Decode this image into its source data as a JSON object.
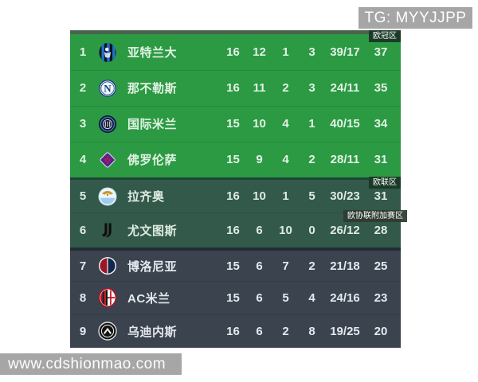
{
  "watermarks": {
    "top": "TG: MYYJJPP",
    "bottom": "www.cdshionmao.com"
  },
  "badges": {
    "champions_zone": "欧冠区",
    "europa_zone": "欧联区",
    "conference_playoff_zone": "欧协联附加赛区"
  },
  "colors": {
    "zone_champions_bg": "#2b9a43",
    "zone_europa_bg": "#33594a",
    "zone_other_bg": "#3a434e",
    "watermark_bg": "#a6a6a6",
    "badge_bg": "#1b3a27"
  },
  "table": {
    "rows": [
      {
        "rank": "1",
        "team": "亚特兰大",
        "logo": "atalanta-logo",
        "played": "16",
        "won": "12",
        "drawn": "1",
        "lost": "3",
        "goals": "39/17",
        "points": "37",
        "zone": "champions"
      },
      {
        "rank": "2",
        "team": "那不勒斯",
        "logo": "napoli-logo",
        "played": "16",
        "won": "11",
        "drawn": "2",
        "lost": "3",
        "goals": "24/11",
        "points": "35",
        "zone": "champions"
      },
      {
        "rank": "3",
        "team": "国际米兰",
        "logo": "inter-logo",
        "played": "15",
        "won": "10",
        "drawn": "4",
        "lost": "1",
        "goals": "40/15",
        "points": "34",
        "zone": "champions"
      },
      {
        "rank": "4",
        "team": "佛罗伦萨",
        "logo": "fiorentina-logo",
        "played": "15",
        "won": "9",
        "drawn": "4",
        "lost": "2",
        "goals": "28/11",
        "points": "31",
        "zone": "champions"
      },
      {
        "rank": "5",
        "team": "拉齐奥",
        "logo": "lazio-logo",
        "played": "16",
        "won": "10",
        "drawn": "1",
        "lost": "5",
        "goals": "30/23",
        "points": "31",
        "zone": "europa"
      },
      {
        "rank": "6",
        "team": "尤文图斯",
        "logo": "juventus-logo",
        "played": "16",
        "won": "6",
        "drawn": "10",
        "lost": "0",
        "goals": "26/12",
        "points": "28",
        "zone": "europa"
      },
      {
        "rank": "7",
        "team": "博洛尼亚",
        "logo": "bologna-logo",
        "played": "15",
        "won": "6",
        "drawn": "7",
        "lost": "2",
        "goals": "21/18",
        "points": "25",
        "zone": "none"
      },
      {
        "rank": "8",
        "team": "AC米兰",
        "logo": "acmilan-logo",
        "played": "15",
        "won": "6",
        "drawn": "5",
        "lost": "4",
        "goals": "24/16",
        "points": "23",
        "zone": "none"
      },
      {
        "rank": "9",
        "team": "乌迪内斯",
        "logo": "udinese-logo",
        "played": "16",
        "won": "6",
        "drawn": "2",
        "lost": "8",
        "goals": "19/25",
        "points": "20",
        "zone": "none"
      }
    ]
  }
}
